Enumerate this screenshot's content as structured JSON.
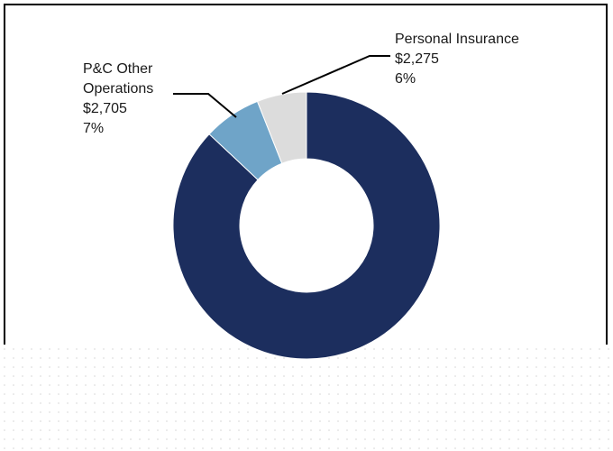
{
  "chart_data": {
    "type": "pie",
    "style": "donut",
    "slices": [
      {
        "name": "",
        "value": null,
        "percent": 87,
        "color": "#1c2e5e"
      },
      {
        "name": "P&C Other Operations",
        "value_label": "$2,705",
        "value": 2705,
        "percent_label": "7%",
        "percent": 7,
        "color": "#6fa4c8"
      },
      {
        "name": "Personal Insurance",
        "value_label": "$2,275",
        "value": 2275,
        "percent_label": "6%",
        "percent": 6,
        "color": "#dcdcdc"
      }
    ]
  },
  "labels": {
    "pc_other_line1": "P&C Other",
    "pc_other_line2": "Operations",
    "pc_other_value": "$2,705",
    "pc_other_pct": "7%",
    "personal_line1": "Personal Insurance",
    "personal_value": "$2,275",
    "personal_pct": "6%"
  }
}
